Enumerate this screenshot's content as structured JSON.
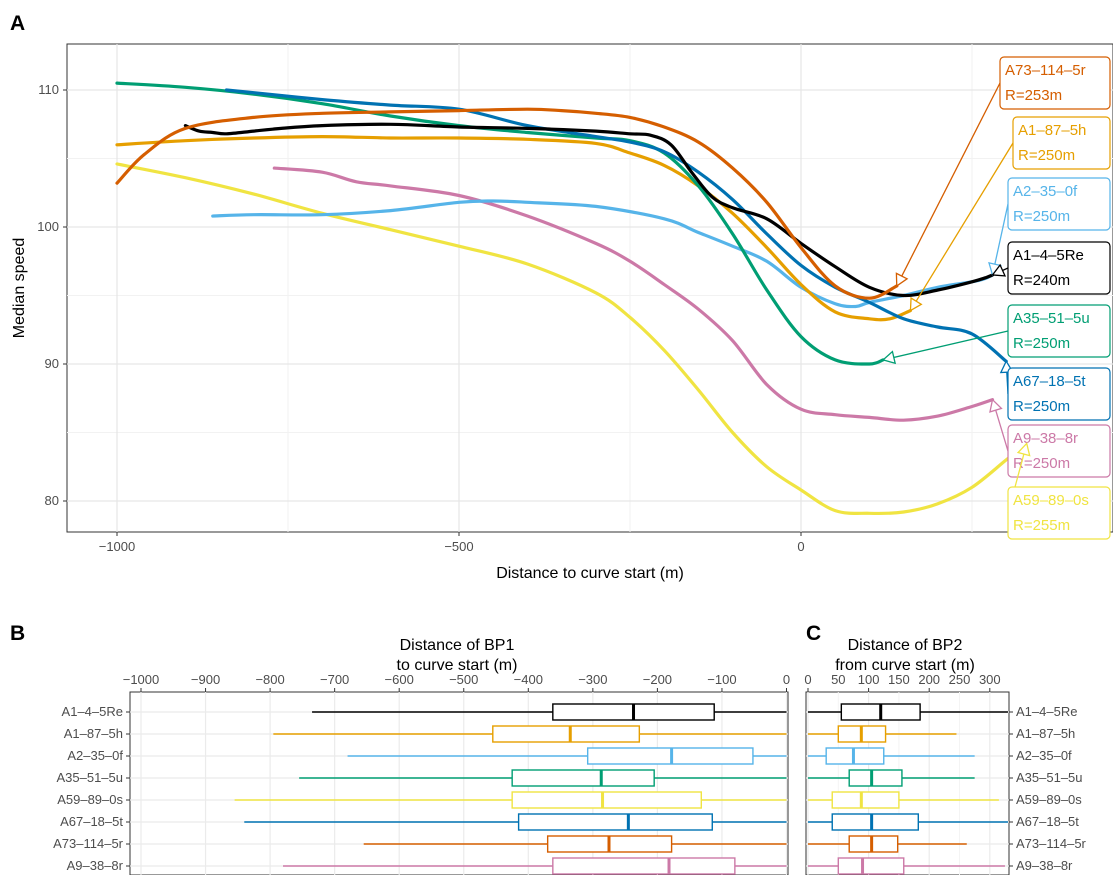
{
  "panels": {
    "a": "A",
    "b": "B",
    "c": "C"
  },
  "chart_data": [
    {
      "panel": "A",
      "type": "line",
      "xlabel": "Distance to curve start (m)",
      "ylabel": "Median speed",
      "xlim": [
        -1000,
        300
      ],
      "ylim": [
        77,
        113
      ],
      "x_ticks": [
        -1000,
        -500,
        0
      ],
      "y_ticks": [
        80,
        90,
        100,
        110
      ],
      "grid": true,
      "series": [
        {
          "name": "A73–114–5r",
          "radius": "R=253m",
          "color": "#D55E00",
          "x": [
            -1000,
            -960,
            -900,
            -800,
            -700,
            -600,
            -500,
            -400,
            -350,
            -300,
            -250,
            -200,
            -150,
            -100,
            -50,
            0,
            50,
            100,
            140
          ],
          "y": [
            103.2,
            105.3,
            107.2,
            108.0,
            108.3,
            108.4,
            108.5,
            108.6,
            108.5,
            108.3,
            108.0,
            107.3,
            106.2,
            104.3,
            101.8,
            98.5,
            95.7,
            94.8,
            95.7
          ]
        },
        {
          "name": "A1–87–5h",
          "radius": "R=250m",
          "color": "#E69F00",
          "x": [
            -1000,
            -900,
            -800,
            -700,
            -600,
            -500,
            -400,
            -300,
            -250,
            -200,
            -150,
            -100,
            -50,
            0,
            50,
            100,
            130,
            160
          ],
          "y": [
            106.0,
            106.3,
            106.5,
            106.6,
            106.5,
            106.5,
            106.4,
            106.1,
            105.4,
            104.5,
            103.0,
            101.0,
            98.5,
            95.8,
            93.8,
            93.3,
            93.3,
            93.9
          ]
        },
        {
          "name": "A2–35–0f",
          "radius": "R=250m",
          "color": "#56B4E9",
          "x": [
            -860,
            -800,
            -700,
            -600,
            -500,
            -450,
            -400,
            -300,
            -200,
            -150,
            -100,
            -50,
            0,
            50,
            80,
            100,
            150,
            200,
            260,
            280
          ],
          "y": [
            100.8,
            100.9,
            100.9,
            101.2,
            101.8,
            101.9,
            101.8,
            101.5,
            100.6,
            99.6,
            98.6,
            97.5,
            95.6,
            94.4,
            94.2,
            94.5,
            95.0,
            95.6,
            96.1,
            96.5
          ]
        },
        {
          "name": "A1–4–5Re",
          "radius": "R=240m",
          "color": "#000000",
          "x": [
            -900,
            -880,
            -860,
            -840,
            -800,
            -760,
            -700,
            -600,
            -500,
            -400,
            -300,
            -250,
            -220,
            -190,
            -160,
            -130,
            -100,
            -50,
            0,
            50,
            100,
            150,
            200,
            250,
            270,
            280
          ],
          "y": [
            107.4,
            107.0,
            106.9,
            106.8,
            107.0,
            107.2,
            107.4,
            107.5,
            107.3,
            107.2,
            107.0,
            106.8,
            106.7,
            106.0,
            104.0,
            102.2,
            101.4,
            100.6,
            98.8,
            97.1,
            95.6,
            95.0,
            95.4,
            96.0,
            96.3,
            96.5
          ]
        },
        {
          "name": "A35–51–5u",
          "radius": "R=250m",
          "color": "#009E73",
          "x": [
            -1000,
            -900,
            -800,
            -700,
            -600,
            -500,
            -400,
            -300,
            -250,
            -200,
            -150,
            -100,
            -50,
            0,
            50,
            100,
            120
          ],
          "y": [
            110.5,
            110.2,
            109.7,
            109.0,
            108.1,
            107.4,
            106.9,
            106.5,
            106.3,
            105.4,
            103.0,
            99.5,
            95.4,
            92.0,
            90.3,
            90.0,
            90.3
          ]
        },
        {
          "name": "A67–18–5t",
          "radius": "R=250m",
          "color": "#0072B2",
          "x": [
            -840,
            -800,
            -700,
            -600,
            -500,
            -400,
            -300,
            -250,
            -200,
            -150,
            -100,
            -50,
            0,
            50,
            100,
            150,
            200,
            250,
            300
          ],
          "y": [
            110.0,
            109.8,
            109.3,
            108.9,
            108.6,
            107.4,
            106.6,
            106.2,
            105.5,
            104.0,
            102.0,
            99.5,
            97.2,
            95.6,
            94.5,
            93.3,
            92.7,
            92.2,
            90.2
          ]
        },
        {
          "name": "A9–38–8r",
          "radius": "R=250m",
          "color": "#CC79A7",
          "x": [
            -770,
            -700,
            -650,
            -600,
            -500,
            -400,
            -300,
            -250,
            -200,
            -150,
            -100,
            -50,
            0,
            50,
            100,
            150,
            200,
            250,
            280
          ],
          "y": [
            104.3,
            104.0,
            103.3,
            103.0,
            102.3,
            100.8,
            98.8,
            97.5,
            95.8,
            94.0,
            91.7,
            88.5,
            86.7,
            86.3,
            86.1,
            85.9,
            86.2,
            86.9,
            87.4
          ]
        },
        {
          "name": "A59–89–0s",
          "radius": "R=255m",
          "color": "#F0E442",
          "x": [
            -1000,
            -900,
            -800,
            -700,
            -600,
            -500,
            -400,
            -300,
            -250,
            -200,
            -150,
            -100,
            -50,
            0,
            50,
            100,
            150,
            200,
            250,
            300,
            330
          ],
          "y": [
            104.6,
            103.6,
            102.4,
            101.0,
            99.8,
            98.6,
            97.3,
            95.2,
            93.4,
            91.0,
            88.1,
            85.0,
            82.5,
            80.8,
            79.3,
            79.1,
            79.2,
            79.8,
            81.0,
            83.0,
            84.2
          ]
        }
      ],
      "labels_order": [
        "A73–114–5r",
        "A1–87–5h",
        "A2–35–0f",
        "A1–4–5Re",
        "A35–51–5u",
        "A67–18–5t",
        "A9–38–8r",
        "A59–89–0s"
      ],
      "arrow_targets_x": {
        "A73–114–5r": 150,
        "A1–87–5h": 155,
        "A2–35–0f": 290,
        "A1–4–5Re": 300,
        "A35–51–5u": 125,
        "A67–18–5t": 300,
        "A9–38–8r": 295,
        "A59–89–0s": 330
      }
    },
    {
      "panel": "B",
      "type": "box",
      "title_lines": [
        "Distance of BP1",
        "to curve start (m)"
      ],
      "xlim": [
        -1000,
        0
      ],
      "x_ticks": [
        -1000,
        -900,
        -800,
        -700,
        -600,
        -500,
        -400,
        -300,
        -200,
        -100,
        0
      ],
      "x_tick_labels": [
        "−1000",
        "−900",
        "−800",
        "−700",
        "−600",
        "−500",
        "−400",
        "−300",
        "−200",
        "−100",
        "0"
      ],
      "categories": [
        "A1–4–5Re",
        "A1–87–5h",
        "A2–35–0f",
        "A35–51–5u",
        "A59–89–0s",
        "A67–18–5t",
        "A73–114–5r",
        "A9–38–8r"
      ],
      "boxes": [
        {
          "min": -735,
          "q1": -362,
          "median": -237,
          "q3": -112,
          "max": 0
        },
        {
          "min": -795,
          "q1": -455,
          "median": -335,
          "q3": -228,
          "max": 0
        },
        {
          "min": -680,
          "q1": -308,
          "median": -178,
          "q3": -52,
          "max": 0
        },
        {
          "min": -755,
          "q1": -425,
          "median": -287,
          "q3": -205,
          "max": 0
        },
        {
          "min": -855,
          "q1": -425,
          "median": -285,
          "q3": -132,
          "max": 0
        },
        {
          "min": -840,
          "q1": -415,
          "median": -245,
          "q3": -115,
          "max": 0
        },
        {
          "min": -655,
          "q1": -370,
          "median": -275,
          "q3": -178,
          "max": 0
        },
        {
          "min": -780,
          "q1": -362,
          "median": -182,
          "q3": -80,
          "max": 0
        }
      ]
    },
    {
      "panel": "C",
      "type": "box",
      "title_lines": [
        "Distance of BP2",
        "from curve start (m)"
      ],
      "xlim": [
        0,
        330
      ],
      "x_ticks": [
        0,
        100,
        200,
        300
      ],
      "x_tick_labels": [
        "0",
        "100",
        "200",
        "300"
      ],
      "minor_ticks": [
        50,
        150,
        250
      ],
      "minor_tick_labels": [
        "50",
        "150",
        "250"
      ],
      "categories": [
        "A1–4–5Re",
        "A1–87–5h",
        "A2–35–0f",
        "A35–51–5u",
        "A59–89–0s",
        "A67–18–5t",
        "A73–114–5r",
        "A9–38–8r"
      ],
      "boxes": [
        {
          "min": 0,
          "q1": 55,
          "median": 120,
          "q3": 185,
          "max": 330
        },
        {
          "min": 0,
          "q1": 50,
          "median": 88,
          "q3": 128,
          "max": 245
        },
        {
          "min": 0,
          "q1": 30,
          "median": 75,
          "q3": 125,
          "max": 275
        },
        {
          "min": 0,
          "q1": 68,
          "median": 105,
          "q3": 155,
          "max": 275
        },
        {
          "min": 0,
          "q1": 40,
          "median": 88,
          "q3": 150,
          "max": 315
        },
        {
          "min": 0,
          "q1": 40,
          "median": 105,
          "q3": 182,
          "max": 330
        },
        {
          "min": 0,
          "q1": 68,
          "median": 105,
          "q3": 148,
          "max": 262
        },
        {
          "min": 0,
          "q1": 50,
          "median": 90,
          "q3": 158,
          "max": 325
        }
      ]
    }
  ]
}
